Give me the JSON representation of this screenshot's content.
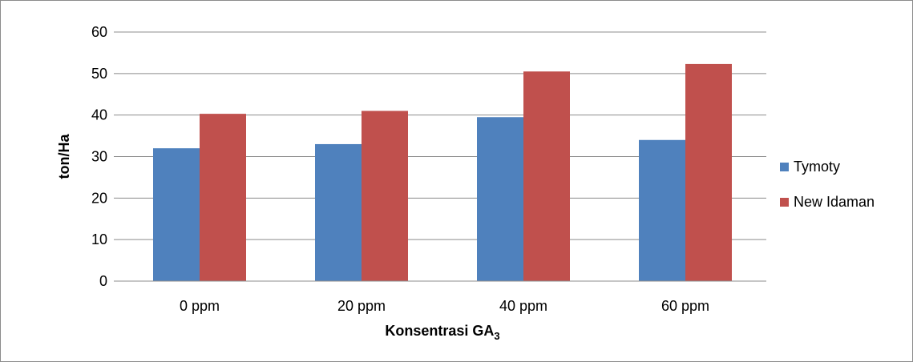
{
  "chart_data": {
    "type": "bar",
    "categories": [
      "0 ppm",
      "20 ppm",
      "40 ppm",
      "60 ppm"
    ],
    "series": [
      {
        "name": "Tymoty",
        "values": [
          32,
          33,
          39.5,
          34
        ],
        "color": "#4f81bd"
      },
      {
        "name": "New Idaman",
        "values": [
          40.3,
          41,
          50.5,
          52.3
        ],
        "color": "#c0504d"
      }
    ],
    "xlabel": "Konsentrasi GA",
    "xlabel_subscript": "3",
    "ylabel": "ton/Ha",
    "ylim": [
      0,
      60
    ],
    "yticks": [
      "0",
      "10",
      "20",
      "30",
      "40",
      "50",
      "60"
    ],
    "grid": true,
    "legend_position": "right"
  }
}
